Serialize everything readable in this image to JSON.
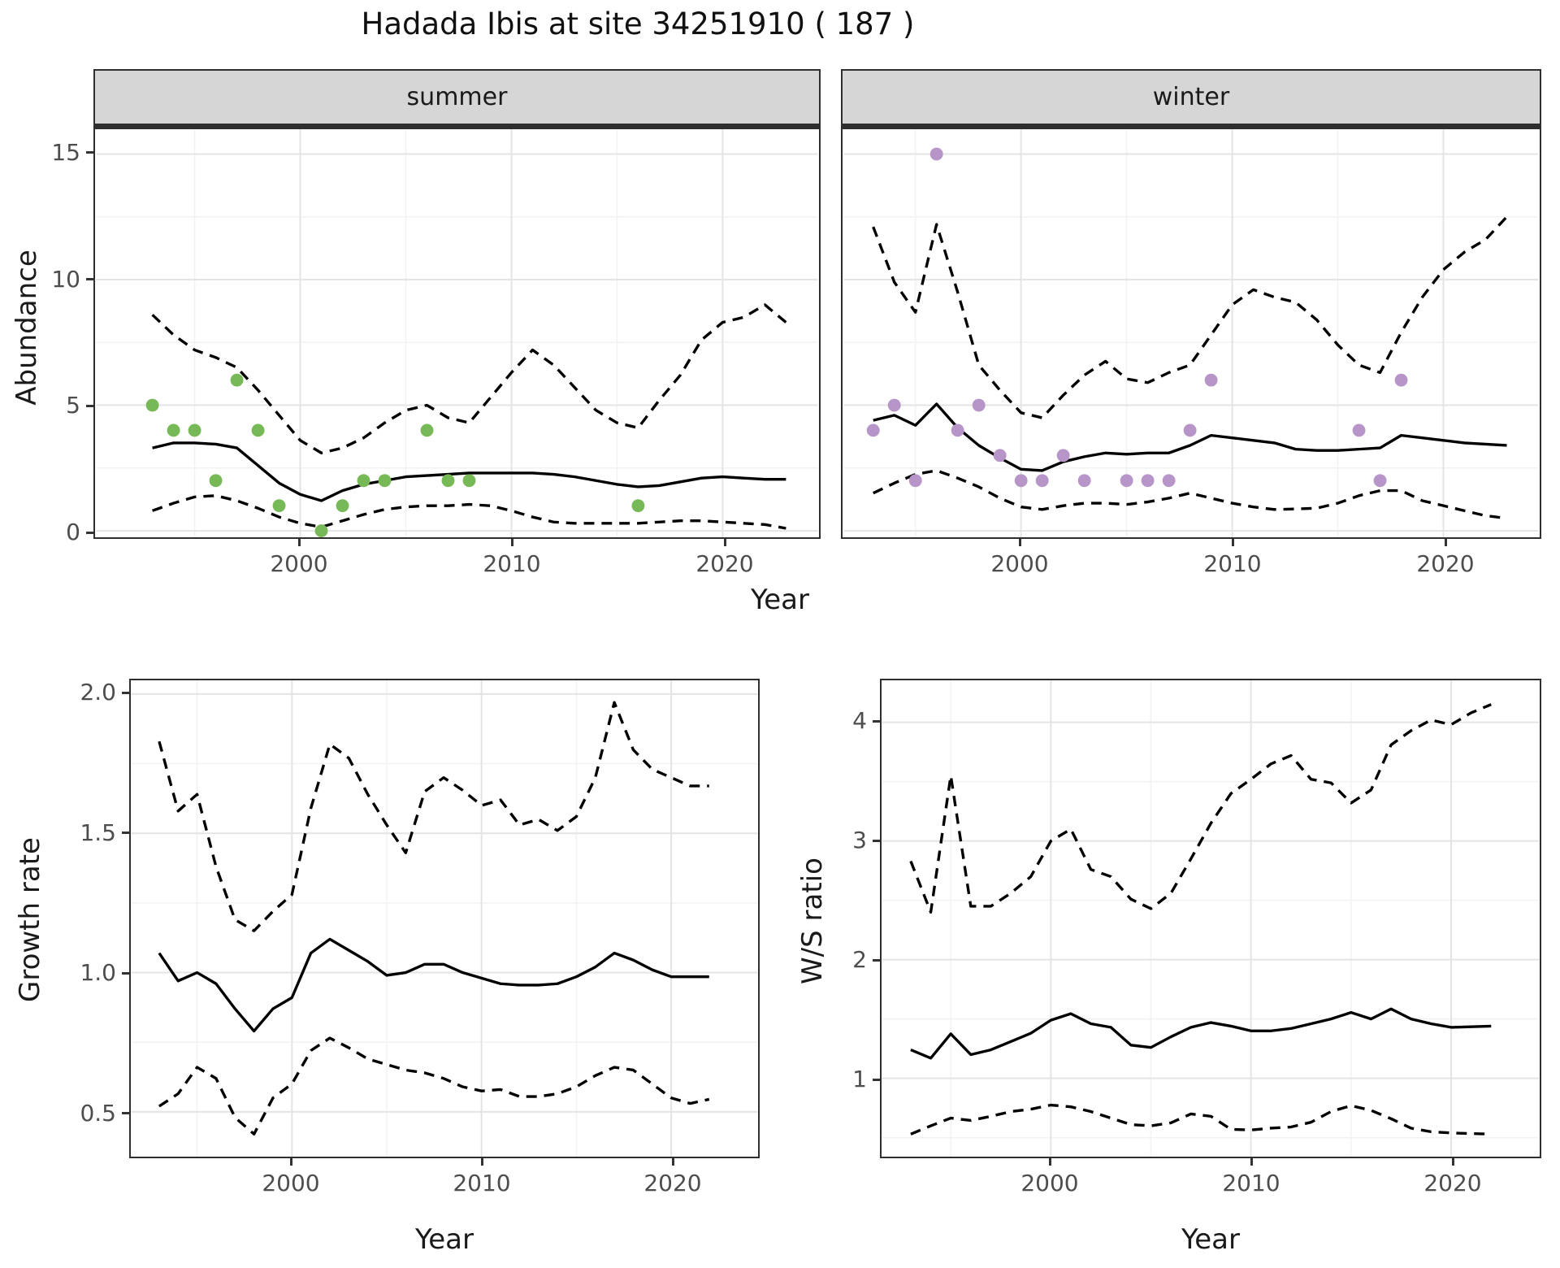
{
  "title": "Hadada Ibis at site 34251910 ( 187 )",
  "axis_labels": {
    "x_top": "Year",
    "x_bottom_left": "Year",
    "x_bottom_right": "Year",
    "y_top": "Abundance",
    "y_growth": "Growth rate",
    "y_ws": "W/S ratio"
  },
  "facet_labels": {
    "summer": "summer",
    "winter": "winter"
  },
  "colors": {
    "summer_point": "#77b857",
    "winter_point": "#b795c8",
    "line": "#000000",
    "strip_bg": "#d6d6d6",
    "panel_border": "#2f2f2f",
    "grid_major": "#e4e4e4",
    "grid_minor": "#f2f2f2",
    "tick_text": "#4d4d4d"
  },
  "chart_data": [
    {
      "id": "summer",
      "type": "line",
      "facet": "summer",
      "xlabel": "Year",
      "ylabel": "Abundance",
      "x_ticks": {
        "values": [
          2000,
          2010,
          2020
        ],
        "labels": [
          "2000",
          "2010",
          "2020"
        ]
      },
      "x_minor": [
        1995,
        2005,
        2015,
        2025
      ],
      "y_ticks": {
        "values": [
          0,
          5,
          10,
          15
        ],
        "labels": [
          "0",
          "5",
          "10",
          "15"
        ]
      },
      "y_minor": [
        2.5,
        7.5,
        12.5
      ],
      "ylim": [
        -0.25,
        15.95
      ],
      "xlim": [
        1991.5,
        2024.5
      ],
      "years": [
        1993,
        1994,
        1995,
        1996,
        1997,
        1998,
        1999,
        2000,
        2001,
        2002,
        2003,
        2004,
        2005,
        2006,
        2007,
        2008,
        2009,
        2010,
        2011,
        2012,
        2013,
        2014,
        2015,
        2016,
        2017,
        2018,
        2019,
        2020,
        2021,
        2022,
        2023
      ],
      "fit": [
        3.3,
        3.5,
        3.5,
        3.45,
        3.3,
        2.6,
        1.9,
        1.45,
        1.2,
        1.6,
        1.85,
        2.0,
        2.15,
        2.2,
        2.25,
        2.3,
        2.3,
        2.3,
        2.3,
        2.25,
        2.15,
        2.0,
        1.85,
        1.75,
        1.8,
        1.95,
        2.1,
        2.15,
        2.1,
        2.05,
        2.05
      ],
      "upper": [
        8.6,
        7.8,
        7.2,
        6.9,
        6.5,
        5.6,
        4.6,
        3.6,
        3.1,
        3.3,
        3.7,
        4.3,
        4.8,
        5.0,
        4.5,
        4.3,
        5.3,
        6.3,
        7.2,
        6.6,
        5.7,
        4.8,
        4.3,
        4.1,
        5.2,
        6.2,
        7.6,
        8.3,
        8.5,
        9.0,
        8.3
      ],
      "lower": [
        0.8,
        1.1,
        1.35,
        1.4,
        1.2,
        0.9,
        0.55,
        0.3,
        0.15,
        0.4,
        0.65,
        0.85,
        0.95,
        1.0,
        1.0,
        1.05,
        1.0,
        0.8,
        0.55,
        0.35,
        0.3,
        0.3,
        0.3,
        0.3,
        0.35,
        0.4,
        0.4,
        0.35,
        0.3,
        0.25,
        0.1
      ],
      "points": [
        [
          1993,
          5
        ],
        [
          1994,
          4
        ],
        [
          1995,
          4
        ],
        [
          1996,
          2
        ],
        [
          1997,
          6
        ],
        [
          1998,
          4
        ],
        [
          1999,
          1
        ],
        [
          2001,
          0
        ],
        [
          2002,
          1
        ],
        [
          2003,
          2
        ],
        [
          2004,
          2
        ],
        [
          2006,
          4
        ],
        [
          2007,
          2
        ],
        [
          2008,
          2
        ],
        [
          2016,
          1
        ]
      ],
      "point_color": "#77b857"
    },
    {
      "id": "winter",
      "type": "line",
      "facet": "winter",
      "xlabel": "Year",
      "ylabel": "Abundance",
      "x_ticks": {
        "values": [
          2000,
          2010,
          2020
        ],
        "labels": [
          "2000",
          "2010",
          "2020"
        ]
      },
      "x_minor": [
        1995,
        2005,
        2015,
        2025
      ],
      "y_ticks": {
        "values": [
          0,
          5,
          10,
          15
        ],
        "labels": [
          "0",
          "5",
          "10",
          "15"
        ]
      },
      "y_minor": [
        2.5,
        7.5,
        12.5
      ],
      "ylim": [
        -0.25,
        15.95
      ],
      "xlim": [
        1991.5,
        2024.5
      ],
      "years": [
        1993,
        1994,
        1995,
        1996,
        1997,
        1998,
        1999,
        2000,
        2001,
        2002,
        2003,
        2004,
        2005,
        2006,
        2007,
        2008,
        2009,
        2010,
        2011,
        2012,
        2013,
        2014,
        2015,
        2016,
        2017,
        2018,
        2019,
        2020,
        2021,
        2022,
        2023
      ],
      "fit": [
        4.4,
        4.6,
        4.2,
        5.05,
        4.1,
        3.4,
        2.9,
        2.45,
        2.4,
        2.75,
        2.95,
        3.1,
        3.05,
        3.1,
        3.1,
        3.4,
        3.8,
        3.7,
        3.6,
        3.5,
        3.25,
        3.2,
        3.2,
        3.25,
        3.3,
        3.8,
        3.7,
        3.6,
        3.5,
        3.45,
        3.4
      ],
      "upper": [
        12.1,
        9.9,
        8.7,
        12.2,
        9.5,
        6.6,
        5.6,
        4.7,
        4.5,
        5.4,
        6.2,
        6.75,
        6.05,
        5.9,
        6.3,
        6.6,
        7.8,
        9.0,
        9.6,
        9.3,
        9.1,
        8.4,
        7.4,
        6.6,
        6.3,
        7.9,
        9.3,
        10.4,
        11.1,
        11.6,
        12.5
      ],
      "lower": [
        1.5,
        1.9,
        2.25,
        2.4,
        2.1,
        1.75,
        1.3,
        0.95,
        0.85,
        1.0,
        1.1,
        1.1,
        1.05,
        1.15,
        1.3,
        1.5,
        1.3,
        1.1,
        0.95,
        0.85,
        0.87,
        0.9,
        1.1,
        1.4,
        1.6,
        1.6,
        1.2,
        1.0,
        0.8,
        0.6,
        0.5
      ],
      "points": [
        [
          1993,
          4
        ],
        [
          1994,
          5
        ],
        [
          1995,
          2
        ],
        [
          1996,
          15
        ],
        [
          1997,
          4
        ],
        [
          1998,
          5
        ],
        [
          1999,
          3
        ],
        [
          2000,
          2
        ],
        [
          2001,
          2
        ],
        [
          2002,
          3
        ],
        [
          2003,
          2
        ],
        [
          2005,
          2
        ],
        [
          2006,
          2
        ],
        [
          2007,
          2
        ],
        [
          2008,
          4
        ],
        [
          2009,
          6
        ],
        [
          2016,
          4
        ],
        [
          2017,
          2
        ],
        [
          2018,
          6
        ]
      ],
      "point_color": "#b795c8"
    },
    {
      "id": "growth",
      "type": "line",
      "xlabel": "Year",
      "ylabel": "Growth rate",
      "x_ticks": {
        "values": [
          2000,
          2010,
          2020
        ],
        "labels": [
          "2000",
          "2010",
          "2020"
        ]
      },
      "x_minor": [
        1995,
        2005,
        2015,
        2025
      ],
      "y_ticks": {
        "values": [
          0.5,
          1.0,
          1.5,
          2.0
        ],
        "labels": [
          "0.5",
          "1.0",
          "1.5",
          "2.0"
        ]
      },
      "y_minor": [
        0.75,
        1.25,
        1.75
      ],
      "ylim": [
        0.34,
        2.05
      ],
      "xlim": [
        1991.5,
        2024.5
      ],
      "years": [
        1993,
        1994,
        1995,
        1996,
        1997,
        1998,
        1999,
        2000,
        2001,
        2002,
        2003,
        2004,
        2005,
        2006,
        2007,
        2008,
        2009,
        2010,
        2011,
        2012,
        2013,
        2014,
        2015,
        2016,
        2017,
        2018,
        2019,
        2020,
        2021,
        2022
      ],
      "fit": [
        1.07,
        0.97,
        1.0,
        0.96,
        0.87,
        0.79,
        0.87,
        0.91,
        1.07,
        1.12,
        1.08,
        1.04,
        0.99,
        1.0,
        1.03,
        1.03,
        1.0,
        0.98,
        0.96,
        0.955,
        0.955,
        0.96,
        0.985,
        1.02,
        1.07,
        1.045,
        1.01,
        0.985,
        0.985,
        0.985
      ],
      "upper": [
        1.83,
        1.58,
        1.64,
        1.38,
        1.19,
        1.15,
        1.22,
        1.28,
        1.59,
        1.82,
        1.77,
        1.64,
        1.53,
        1.43,
        1.65,
        1.7,
        1.655,
        1.6,
        1.62,
        1.53,
        1.55,
        1.51,
        1.56,
        1.7,
        1.97,
        1.8,
        1.73,
        1.7,
        1.67,
        1.67
      ],
      "lower": [
        0.52,
        0.565,
        0.66,
        0.62,
        0.48,
        0.42,
        0.55,
        0.6,
        0.72,
        0.765,
        0.73,
        0.69,
        0.67,
        0.65,
        0.64,
        0.62,
        0.59,
        0.575,
        0.58,
        0.555,
        0.555,
        0.565,
        0.59,
        0.63,
        0.66,
        0.65,
        0.6,
        0.55,
        0.53,
        0.545
      ],
      "points": [],
      "point_color": "#000000"
    },
    {
      "id": "ws",
      "type": "line",
      "xlabel": "Year",
      "ylabel": "W/S ratio",
      "x_ticks": {
        "values": [
          2000,
          2010,
          2020
        ],
        "labels": [
          "2000",
          "2010",
          "2020"
        ]
      },
      "x_minor": [
        1995,
        2005,
        2015,
        2025
      ],
      "y_ticks": {
        "values": [
          1,
          2,
          3,
          4
        ],
        "labels": [
          "1",
          "2",
          "3",
          "4"
        ]
      },
      "y_minor": [
        0.5,
        1.5,
        2.5,
        3.5
      ],
      "ylim": [
        0.33,
        4.34
      ],
      "xlim": [
        1991.5,
        2024.5
      ],
      "years": [
        1993,
        1994,
        1995,
        1996,
        1997,
        1998,
        1999,
        2000,
        2001,
        2002,
        2003,
        2004,
        2005,
        2006,
        2007,
        2008,
        2009,
        2010,
        2011,
        2012,
        2013,
        2014,
        2015,
        2016,
        2017,
        2018,
        2019,
        2020,
        2021,
        2022
      ],
      "fit": [
        1.24,
        1.17,
        1.375,
        1.2,
        1.24,
        1.31,
        1.38,
        1.49,
        1.545,
        1.46,
        1.43,
        1.28,
        1.26,
        1.35,
        1.43,
        1.47,
        1.44,
        1.4,
        1.4,
        1.42,
        1.46,
        1.5,
        1.555,
        1.5,
        1.585,
        1.5,
        1.46,
        1.43,
        1.435,
        1.44
      ],
      "upper": [
        2.83,
        2.4,
        3.55,
        2.45,
        2.45,
        2.56,
        2.7,
        3.0,
        3.1,
        2.76,
        2.7,
        2.51,
        2.43,
        2.56,
        2.85,
        3.15,
        3.4,
        3.52,
        3.65,
        3.72,
        3.52,
        3.49,
        3.32,
        3.43,
        3.81,
        3.93,
        4.02,
        3.98,
        4.08,
        4.15
      ],
      "lower": [
        0.53,
        0.6,
        0.665,
        0.645,
        0.68,
        0.72,
        0.74,
        0.775,
        0.76,
        0.72,
        0.665,
        0.61,
        0.6,
        0.625,
        0.7,
        0.68,
        0.57,
        0.565,
        0.58,
        0.59,
        0.63,
        0.72,
        0.77,
        0.73,
        0.66,
        0.58,
        0.55,
        0.54,
        0.535,
        0.53
      ],
      "points": [],
      "point_color": "#000000"
    }
  ]
}
